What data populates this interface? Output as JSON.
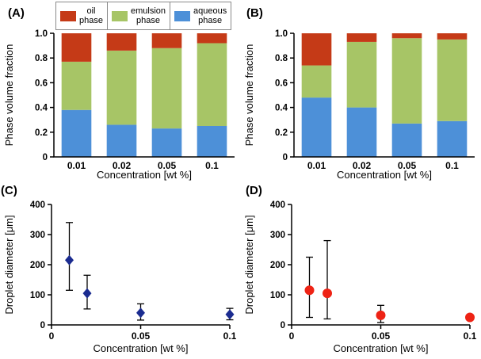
{
  "figure": {
    "background": "#ffffff",
    "panels": {
      "A": {
        "label": "(A)"
      },
      "B": {
        "label": "(B)"
      },
      "C": {
        "label": "(C)"
      },
      "D": {
        "label": "(D)"
      }
    }
  },
  "legend": {
    "items": [
      {
        "id": "oil",
        "label": "oil\nphase",
        "color": "#c53a17"
      },
      {
        "id": "emulsion",
        "label": "emulsion\nphase",
        "color": "#a7c566"
      },
      {
        "id": "aqueous",
        "label": "aqueous\nphase",
        "color": "#4d90d8"
      }
    ]
  },
  "chart_data": [
    {
      "id": "A",
      "type": "bar",
      "stacked": true,
      "categories": [
        "0.01",
        "0.02",
        "0.05",
        "0.1"
      ],
      "series": [
        {
          "name": "aqueous phase",
          "color": "#4d90d8",
          "values": [
            0.38,
            0.26,
            0.23,
            0.25
          ]
        },
        {
          "name": "emulsion phase",
          "color": "#a7c566",
          "values": [
            0.39,
            0.6,
            0.65,
            0.67
          ]
        },
        {
          "name": "oil phase",
          "color": "#c53a17",
          "values": [
            0.23,
            0.14,
            0.12,
            0.08
          ]
        }
      ],
      "xlabel": "Concentration [wt %]",
      "ylabel": "Phase volume fraction",
      "ylim": [
        0,
        1.0
      ],
      "ytick_vals": [
        0,
        0.2,
        0.4,
        0.6,
        0.8,
        1.0
      ],
      "ytick_labels": [
        "0",
        "0.2",
        "0.4",
        "0.6",
        "0.8",
        "1.0"
      ],
      "legend_position": "top",
      "grid": false
    },
    {
      "id": "B",
      "type": "bar",
      "stacked": true,
      "categories": [
        "0.01",
        "0.02",
        "0.05",
        "0.1"
      ],
      "series": [
        {
          "name": "aqueous phase",
          "color": "#4d90d8",
          "values": [
            0.48,
            0.4,
            0.27,
            0.29
          ]
        },
        {
          "name": "emulsion phase",
          "color": "#a7c566",
          "values": [
            0.26,
            0.53,
            0.69,
            0.66
          ]
        },
        {
          "name": "oil phase",
          "color": "#c53a17",
          "values": [
            0.26,
            0.07,
            0.04,
            0.05
          ]
        }
      ],
      "xlabel": "Concentration [wt %]",
      "ylabel": "Phase volume fraction",
      "ylim": [
        0,
        1.0
      ],
      "ytick_vals": [
        0,
        0.2,
        0.4,
        0.6,
        0.8,
        1.0
      ],
      "ytick_labels": [
        "0",
        "0.2",
        "0.4",
        "0.6",
        "0.8",
        "1.0"
      ],
      "grid": false
    },
    {
      "id": "C",
      "type": "scatter",
      "marker": "diamond",
      "color": "#1b2c90",
      "x": [
        0.01,
        0.02,
        0.05,
        0.1
      ],
      "y": [
        215,
        105,
        40,
        35
      ],
      "err_low": [
        100,
        52,
        24,
        18
      ],
      "err_high": [
        125,
        60,
        30,
        20
      ],
      "xlabel": "Concentration [wt %]",
      "ylabel": "Droplet diameter [μm]",
      "xlim": [
        0,
        0.1
      ],
      "xtick_vals": [
        0,
        0.05,
        0.1
      ],
      "xtick_labels": [
        "0",
        "0.05",
        "0.1"
      ],
      "ylim": [
        0,
        400
      ],
      "ytick_vals": [
        0,
        100,
        200,
        300,
        400
      ],
      "ytick_labels": [
        "0",
        "100",
        "200",
        "300",
        "400"
      ],
      "grid": false
    },
    {
      "id": "D",
      "type": "scatter",
      "marker": "circle",
      "color": "#ee2315",
      "x": [
        0.01,
        0.02,
        0.05,
        0.1
      ],
      "y": [
        115,
        105,
        32,
        25
      ],
      "err_low": [
        90,
        85,
        24,
        8
      ],
      "err_high": [
        110,
        175,
        33,
        8
      ],
      "xlabel": "Concentration [wt %]",
      "ylabel": "Droplet diameter [μm]",
      "xlim": [
        0,
        0.1
      ],
      "xtick_vals": [
        0,
        0.05,
        0.1
      ],
      "xtick_labels": [
        "0",
        "0.05",
        "0.1"
      ],
      "ylim": [
        0,
        400
      ],
      "ytick_vals": [
        0,
        100,
        200,
        300,
        400
      ],
      "ytick_labels": [
        "0",
        "100",
        "200",
        "300",
        "400"
      ],
      "grid": false
    }
  ]
}
